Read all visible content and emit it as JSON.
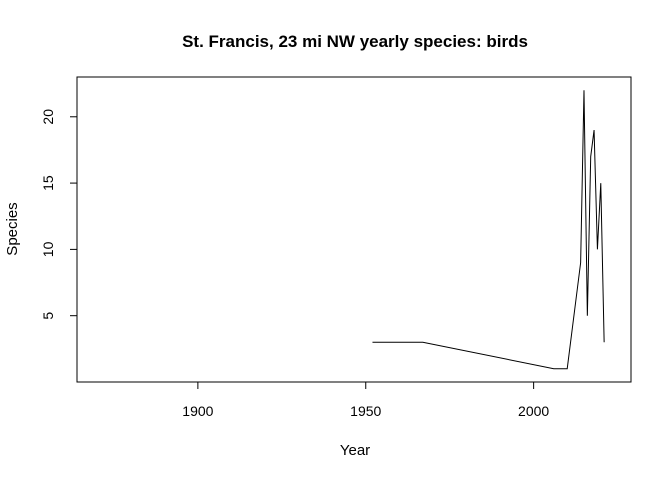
{
  "chart_data": {
    "type": "line",
    "title": "St. Francis, 23 mi NW yearly species: birds",
    "xlabel": "Year",
    "ylabel": "Species",
    "xlim": [
      1864,
      2029
    ],
    "ylim": [
      0,
      23
    ],
    "x_ticks": [
      1900,
      1950,
      2000
    ],
    "y_ticks": [
      5,
      10,
      15,
      20
    ],
    "grid": false,
    "series": [
      {
        "x": [
          1952,
          1967,
          2006,
          2010,
          2014,
          2015,
          2016,
          2017,
          2018,
          2019,
          2020,
          2021
        ],
        "values": [
          3,
          3,
          1,
          1,
          9,
          22,
          5,
          17,
          19,
          10,
          15,
          3
        ],
        "color": "#000000"
      }
    ]
  }
}
